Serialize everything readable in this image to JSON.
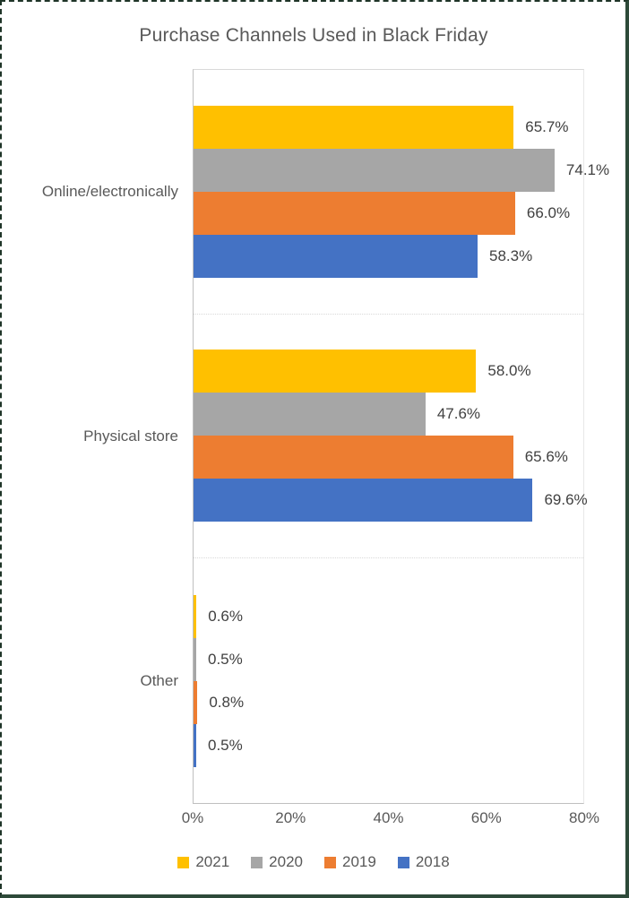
{
  "page": {
    "background": "#ffffff",
    "frame_border_color": "#2e4a39"
  },
  "chart_data": {
    "type": "bar",
    "orientation": "horizontal",
    "title": "Purchase Channels Used in Black Friday",
    "categories": [
      "Online/electronically",
      "Physical store",
      "Other"
    ],
    "series": [
      {
        "name": "2021",
        "color": "#FFC000",
        "values": [
          65.7,
          58.0,
          0.6
        ],
        "labels": [
          "65.7%",
          "58.0%",
          "0.6%"
        ]
      },
      {
        "name": "2020",
        "color": "#A6A6A6",
        "values": [
          74.1,
          47.6,
          0.5
        ],
        "labels": [
          "74.1%",
          "47.6%",
          "0.5%"
        ]
      },
      {
        "name": "2019",
        "color": "#ED7D31",
        "values": [
          66.0,
          65.6,
          0.8
        ],
        "labels": [
          "66.0%",
          "65.6%",
          "0.8%"
        ]
      },
      {
        "name": "2018",
        "color": "#4472C4",
        "values": [
          58.3,
          69.6,
          0.5
        ],
        "labels": [
          "58.3%",
          "69.6%",
          "0.5%"
        ]
      }
    ],
    "xlabel": "",
    "ylabel": "",
    "xlim": [
      0,
      80
    ],
    "x_ticks": {
      "labels": [
        "0%",
        "20%",
        "40%",
        "60%",
        "80%"
      ],
      "values": [
        0,
        20,
        40,
        60,
        80
      ]
    },
    "grid": false,
    "legend_position": "bottom",
    "colors": {
      "title_text": "#595959",
      "axis_text": "#595959",
      "data_label_text": "#404040",
      "axis_line": "#bfbfbf",
      "plot_border": "#d9d9d9"
    }
  }
}
